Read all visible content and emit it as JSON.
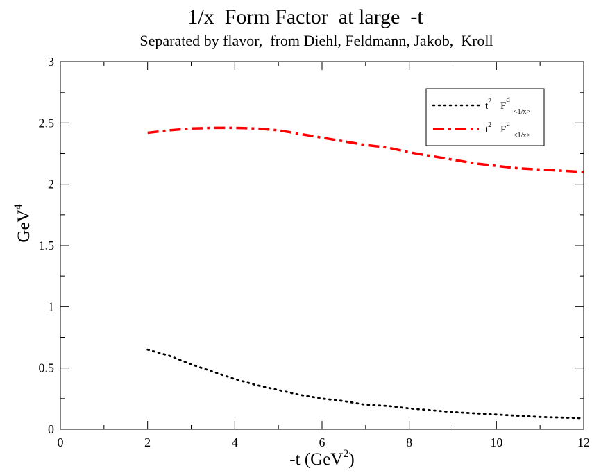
{
  "chart_data": {
    "type": "line",
    "title": "1/x  Form Factor  at large  -t",
    "subtitle": "Separated by flavor,  from Diehl, Feldmann, Jakob,  Kroll",
    "xlabel": {
      "base": "-t (GeV",
      "sup": "2",
      "tail": ")"
    },
    "ylabel": {
      "base": "GeV",
      "sup": "4"
    },
    "xlim": [
      0,
      12
    ],
    "ylim": [
      0,
      3
    ],
    "x_major_ticks": [
      0,
      2,
      4,
      6,
      8,
      10,
      12
    ],
    "x_tick_labels": [
      "0",
      "2",
      "4",
      "6",
      "8",
      "10",
      "12"
    ],
    "x_minor_ticks": [
      1,
      3,
      5,
      7,
      9,
      11
    ],
    "y_major_ticks": [
      0,
      0.5,
      1,
      1.5,
      2,
      2.5,
      3
    ],
    "y_tick_labels": [
      "0",
      "0.5",
      "1",
      "1.5",
      "2",
      "2.5",
      "3"
    ],
    "y_minor_ticks": [
      0.25,
      0.75,
      1.25,
      1.75,
      2.25,
      2.75
    ],
    "grid": false,
    "legend_position": "top-right",
    "series": [
      {
        "id": "d",
        "legend": {
          "t": "t",
          "t_sup": "2",
          "F": "F",
          "F_sup": "d",
          "F_sub": "<1/x>"
        },
        "color": "#000000",
        "style": "dotted",
        "x": [
          2,
          2.5,
          3,
          3.5,
          4,
          4.5,
          5,
          5.5,
          6,
          6.5,
          7,
          7.5,
          8,
          8.5,
          9,
          9.5,
          10,
          10.5,
          11,
          11.5,
          12
        ],
        "y": [
          0.65,
          0.6,
          0.53,
          0.47,
          0.41,
          0.36,
          0.32,
          0.28,
          0.25,
          0.23,
          0.2,
          0.19,
          0.17,
          0.155,
          0.14,
          0.13,
          0.12,
          0.11,
          0.1,
          0.095,
          0.09
        ]
      },
      {
        "id": "u",
        "legend": {
          "t": "t",
          "t_sup": "2",
          "F": "F",
          "F_sup": "u",
          "F_sub": "<1/x>"
        },
        "color": "#ff0000",
        "style": "dash-dot",
        "x": [
          2,
          2.5,
          3,
          3.5,
          4,
          4.5,
          5,
          5.5,
          6,
          6.5,
          7,
          7.5,
          8,
          8.5,
          9,
          9.5,
          10,
          10.5,
          11,
          11.5,
          12
        ],
        "y": [
          2.42,
          2.44,
          2.455,
          2.46,
          2.46,
          2.455,
          2.44,
          2.41,
          2.38,
          2.35,
          2.32,
          2.3,
          2.26,
          2.23,
          2.2,
          2.17,
          2.15,
          2.13,
          2.12,
          2.11,
          2.1
        ]
      }
    ]
  }
}
